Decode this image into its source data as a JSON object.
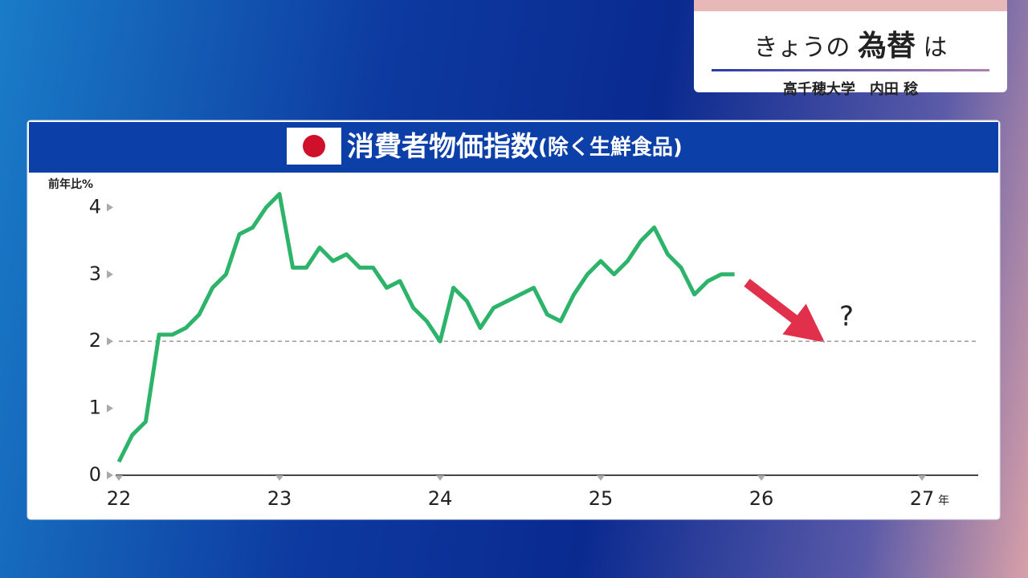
{
  "header": {
    "title_pre": "きょうの",
    "title_main": "為替",
    "title_post": "は",
    "subtitle": "高千穂大学　内田 稔"
  },
  "chart_data": {
    "type": "line",
    "title": "消費者物価指数",
    "title_suffix": "(除く生鮮食品)",
    "y_label": "前年比%",
    "x_unit": "年",
    "annotation": "?",
    "x": [
      22,
      22.083,
      22.167,
      22.25,
      22.333,
      22.417,
      22.5,
      22.583,
      22.667,
      22.75,
      22.833,
      22.917,
      23,
      23.083,
      23.167,
      23.25,
      23.333,
      23.417,
      23.5,
      23.583,
      23.667,
      23.75,
      23.833,
      23.917,
      24,
      24.083,
      24.167,
      24.25,
      24.333,
      24.417,
      24.5,
      24.583,
      24.667,
      24.75,
      24.833,
      24.917,
      25,
      25.083,
      25.167,
      25.25,
      25.333,
      25.417,
      25.5,
      25.583,
      25.667,
      25.75,
      25.833
    ],
    "series": [
      {
        "color": "#2db46a",
        "values": [
          0.2,
          0.6,
          0.8,
          2.1,
          2.1,
          2.2,
          2.4,
          2.8,
          3.0,
          3.6,
          3.7,
          4.0,
          4.2,
          3.1,
          3.1,
          3.4,
          3.2,
          3.3,
          3.1,
          3.1,
          2.8,
          2.9,
          2.5,
          2.3,
          2.0,
          2.8,
          2.6,
          2.2,
          2.5,
          2.6,
          2.7,
          2.8,
          2.4,
          2.3,
          2.7,
          3.0,
          3.2,
          3.0,
          3.2,
          3.5,
          3.7,
          3.3,
          3.1,
          2.7,
          2.9,
          3.0,
          3.0
        ]
      }
    ],
    "reference_line": 2,
    "xlim": [
      22,
      27.35
    ],
    "xticks": [
      22,
      23,
      24,
      25,
      26,
      27
    ],
    "ylim": [
      0,
      4.4
    ],
    "yticks": [
      0,
      1,
      2,
      3,
      4
    ]
  }
}
